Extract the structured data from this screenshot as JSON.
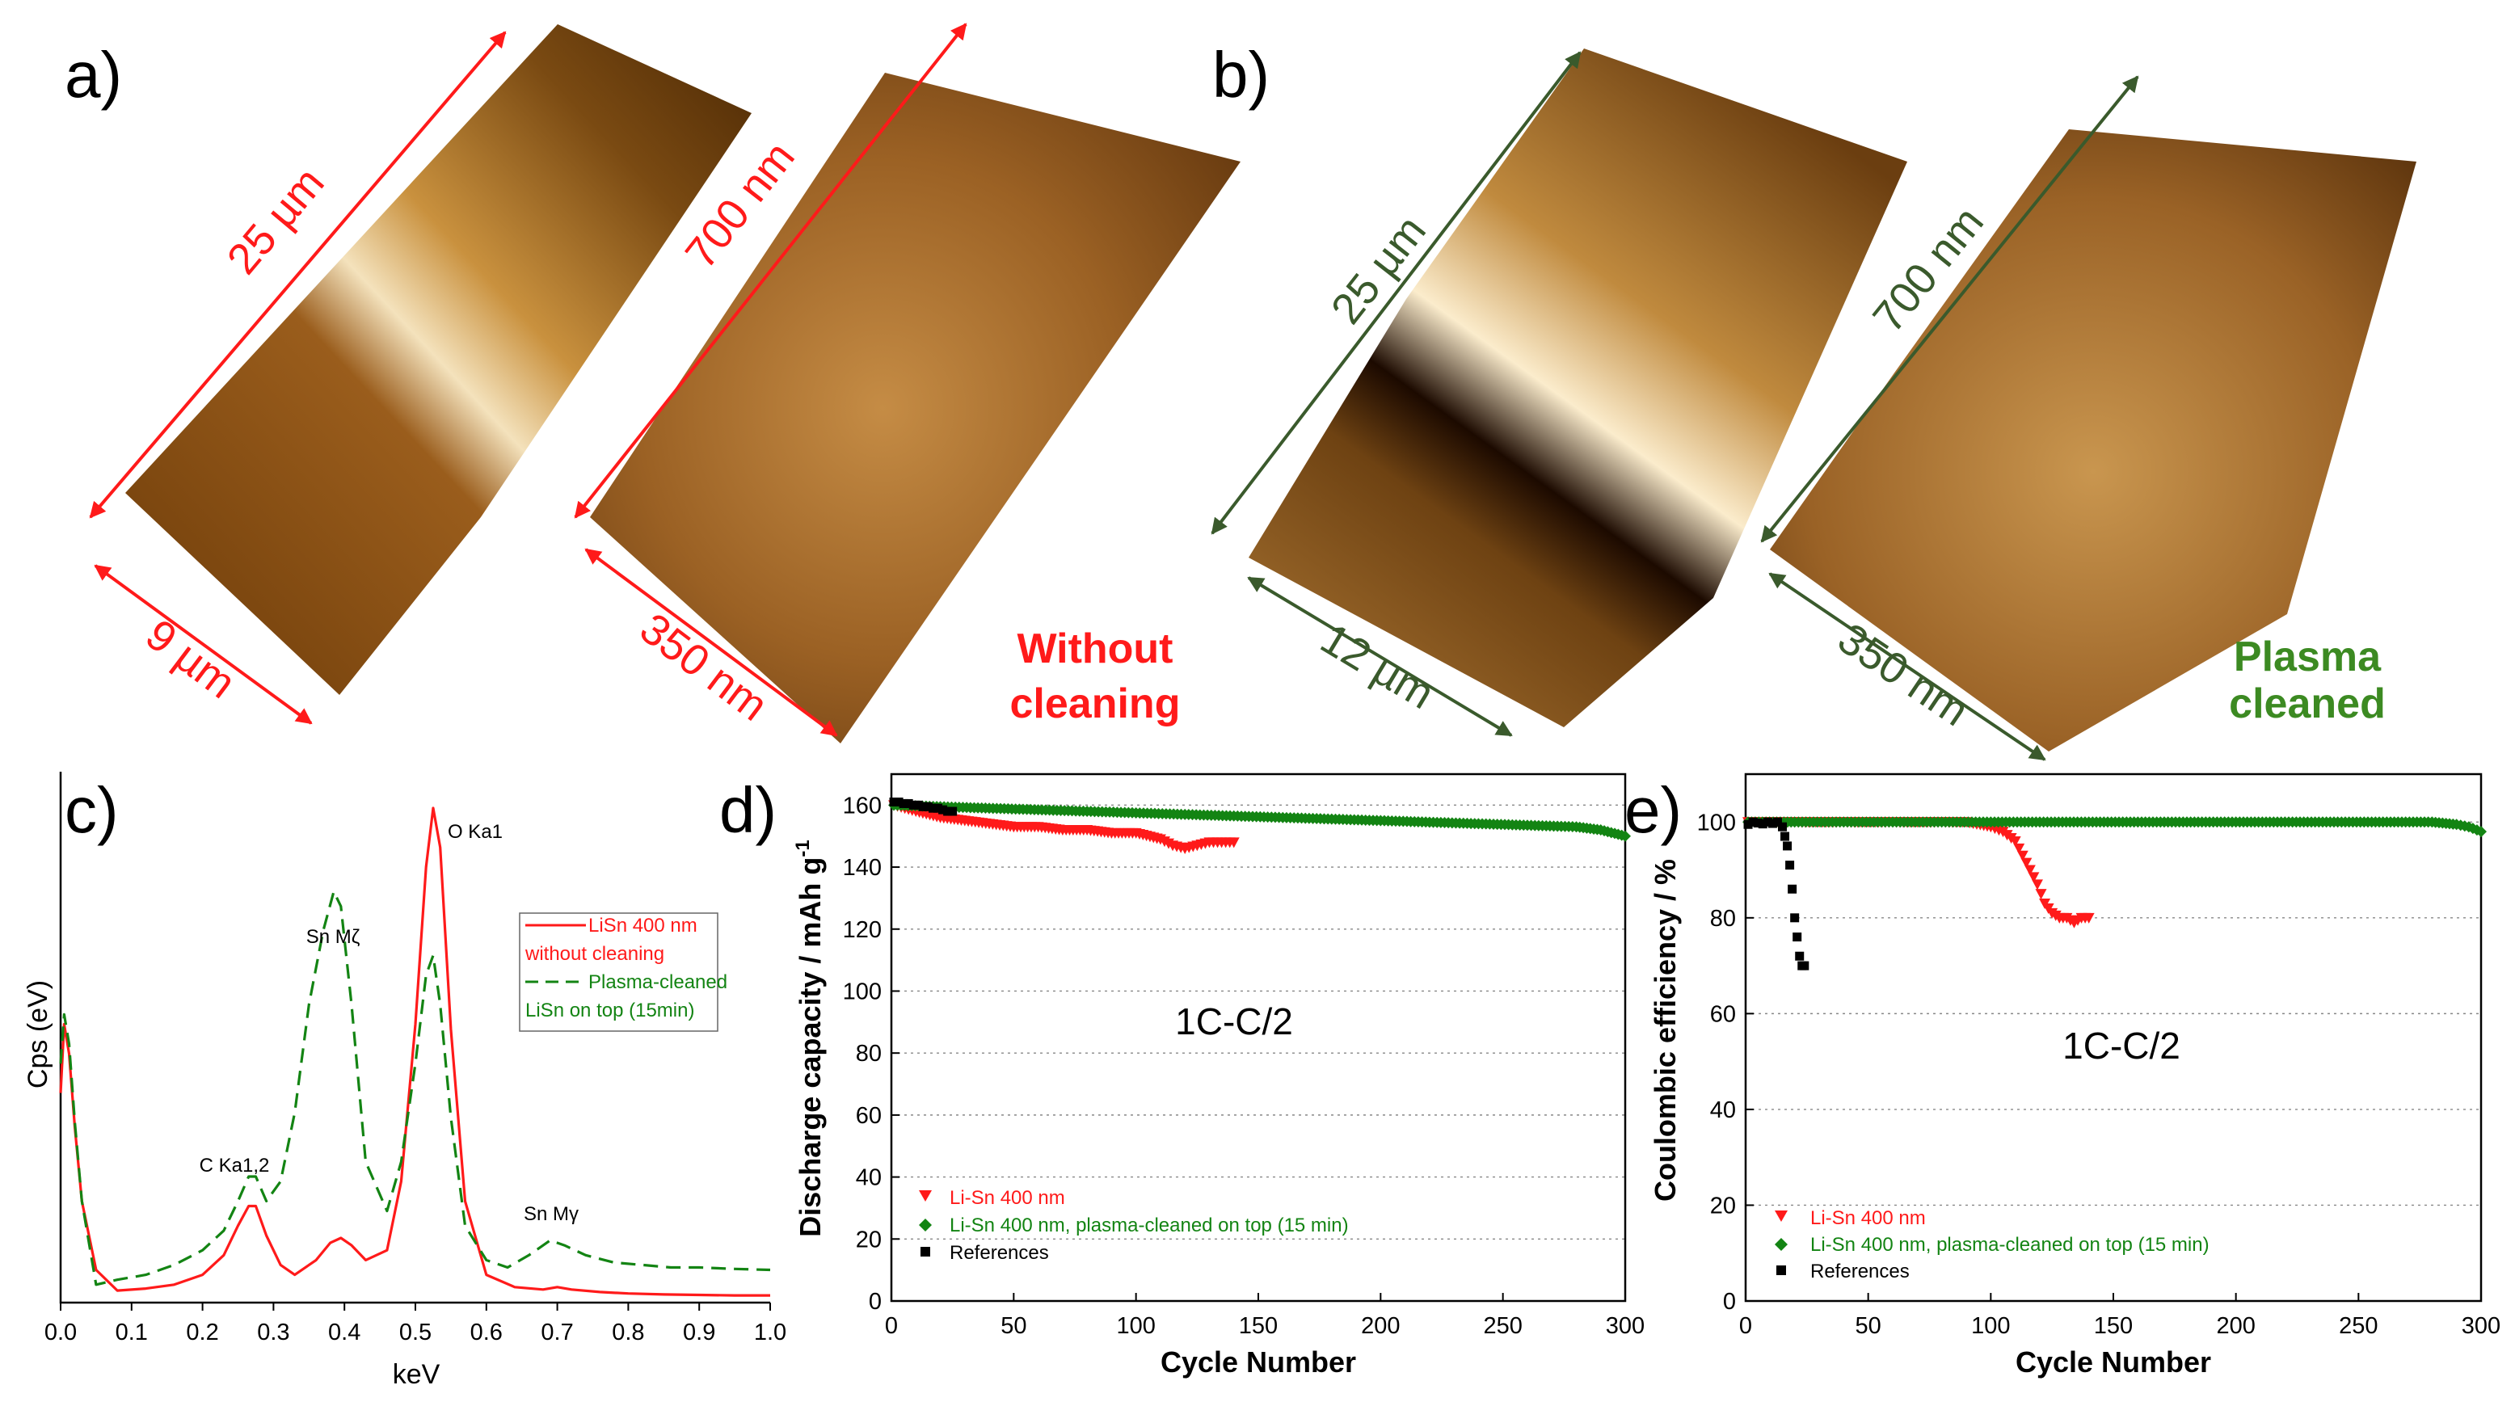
{
  "panel_letters": [
    "a)",
    "b)",
    "c)",
    "d)",
    "e)"
  ],
  "colors": {
    "red": "#ff1a1a",
    "green": "#138413",
    "dark_green": "#3a5a2c",
    "black": "#000000"
  },
  "afm": {
    "a": {
      "tile1": {
        "length_label": "25 µm",
        "width_label": "9 µm"
      },
      "tile2": {
        "length_label": "700 nm",
        "width_label": "350 nm"
      },
      "caption": [
        "Without",
        "cleaning"
      ]
    },
    "b": {
      "tile1": {
        "length_label": "25 µm",
        "width_label": "12 µm"
      },
      "tile2": {
        "length_label": "700 nm",
        "width_label": "350 nm"
      },
      "caption": [
        "Plasma",
        "cleaned"
      ]
    }
  },
  "chart_data": [
    {
      "id": "c",
      "type": "line",
      "title": "",
      "xlabel": "keV",
      "ylabel": "Cps (eV)",
      "xlim": [
        0.0,
        1.0
      ],
      "xticks": [
        "0.0",
        "0.1",
        "0.2",
        "0.3",
        "0.4",
        "0.5",
        "0.6",
        "0.7",
        "0.8",
        "0.9",
        "1.0"
      ],
      "grid": false,
      "annotations": [
        "C Ka1,2",
        "Sn Mζ",
        "O Ka1",
        "Sn Mγ"
      ],
      "legend": {
        "position": "top-right",
        "entries": [
          {
            "lines": [
              "LiSn 400 nm",
              "without cleaning"
            ]
          },
          {
            "lines": [
              "Plasma-cleaned",
              "LiSn on top (15min)"
            ]
          }
        ]
      },
      "series": [
        {
          "name": "LiSn 400 nm without cleaning",
          "color": "#ff1a1a",
          "dash": "solid",
          "x": [
            0.0,
            0.005,
            0.012,
            0.02,
            0.03,
            0.05,
            0.08,
            0.12,
            0.16,
            0.2,
            0.23,
            0.25,
            0.265,
            0.275,
            0.29,
            0.31,
            0.33,
            0.36,
            0.38,
            0.395,
            0.41,
            0.43,
            0.46,
            0.48,
            0.5,
            0.515,
            0.525,
            0.535,
            0.55,
            0.57,
            0.6,
            0.64,
            0.68,
            0.7,
            0.72,
            0.76,
            0.8,
            0.85,
            0.9,
            0.95,
            1.0
          ],
          "y": [
            0.42,
            0.56,
            0.5,
            0.35,
            0.2,
            0.06,
            0.018,
            0.022,
            0.03,
            0.05,
            0.09,
            0.15,
            0.19,
            0.19,
            0.13,
            0.07,
            0.05,
            0.08,
            0.115,
            0.125,
            0.11,
            0.08,
            0.1,
            0.24,
            0.56,
            0.88,
            1.0,
            0.92,
            0.55,
            0.2,
            0.05,
            0.025,
            0.02,
            0.025,
            0.02,
            0.015,
            0.012,
            0.01,
            0.009,
            0.008,
            0.008
          ]
        },
        {
          "name": "Plasma-cleaned LiSn on top (15min)",
          "color": "#138413",
          "dash": "dashed",
          "x": [
            0.0,
            0.005,
            0.012,
            0.02,
            0.03,
            0.05,
            0.08,
            0.12,
            0.16,
            0.2,
            0.23,
            0.25,
            0.265,
            0.275,
            0.29,
            0.31,
            0.33,
            0.35,
            0.37,
            0.385,
            0.395,
            0.41,
            0.43,
            0.46,
            0.48,
            0.5,
            0.515,
            0.525,
            0.535,
            0.55,
            0.57,
            0.6,
            0.63,
            0.66,
            0.69,
            0.71,
            0.74,
            0.78,
            0.82,
            0.86,
            0.9,
            0.95,
            1.0
          ],
          "y": [
            0.48,
            0.58,
            0.52,
            0.36,
            0.2,
            0.03,
            0.04,
            0.05,
            0.07,
            0.1,
            0.14,
            0.2,
            0.25,
            0.25,
            0.2,
            0.24,
            0.38,
            0.6,
            0.75,
            0.83,
            0.8,
            0.6,
            0.28,
            0.18,
            0.28,
            0.48,
            0.66,
            0.7,
            0.6,
            0.37,
            0.15,
            0.08,
            0.065,
            0.09,
            0.12,
            0.11,
            0.09,
            0.075,
            0.07,
            0.065,
            0.065,
            0.062,
            0.06
          ]
        }
      ]
    },
    {
      "id": "d",
      "type": "scatter",
      "title": "",
      "xlabel": "Cycle Number",
      "ylabel": "Discharge capacity / mAh g",
      "ylabel_sup": "-1",
      "xlim": [
        0,
        300
      ],
      "ylim": [
        0,
        170
      ],
      "xticks": [
        0,
        50,
        100,
        150,
        200,
        250,
        300
      ],
      "yticks": [
        0,
        20,
        40,
        60,
        80,
        100,
        120,
        140,
        160
      ],
      "grid": true,
      "annotation": "1C-C/2",
      "legend": {
        "position": "bottom-left",
        "entries": [
          "Li-Sn 400 nm",
          "Li-Sn 400 nm, plasma-cleaned on top (15 min)",
          "References"
        ]
      },
      "series": [
        {
          "name": "Li-Sn 400 nm",
          "color": "#ff1a1a",
          "marker": "triangle-down",
          "x": [
            1,
            10,
            20,
            30,
            40,
            50,
            60,
            70,
            80,
            90,
            100,
            110,
            115,
            120,
            125,
            130,
            135,
            140
          ],
          "y": [
            160,
            158,
            156,
            155,
            154,
            153,
            153,
            152,
            152,
            151,
            151,
            149,
            147,
            146,
            147,
            148,
            148,
            148
          ]
        },
        {
          "name": "Li-Sn 400 nm, plasma-cleaned on top (15 min)",
          "color": "#138413",
          "marker": "diamond",
          "x": [
            1,
            20,
            40,
            60,
            80,
            100,
            120,
            140,
            160,
            180,
            200,
            220,
            240,
            260,
            280,
            290,
            300
          ],
          "y": [
            160,
            159.5,
            159,
            158.5,
            158,
            157.5,
            157,
            156.5,
            156,
            155.5,
            155,
            154.5,
            154,
            153.5,
            153,
            152,
            150
          ]
        },
        {
          "name": "References",
          "color": "#000000",
          "marker": "square",
          "x": [
            1,
            3,
            5,
            7,
            9,
            11,
            13,
            15,
            17,
            19,
            21,
            23,
            25
          ],
          "y": [
            161,
            161,
            160.5,
            160.5,
            160,
            160,
            159.5,
            159.5,
            159,
            159,
            158.5,
            158,
            158
          ]
        }
      ]
    },
    {
      "id": "e",
      "type": "scatter",
      "title": "",
      "xlabel": "Cycle Number",
      "ylabel": "Coulombic efficiency / %",
      "xlim": [
        0,
        300
      ],
      "ylim": [
        0,
        110
      ],
      "xticks": [
        0,
        50,
        100,
        150,
        200,
        250,
        300
      ],
      "yticks": [
        0,
        20,
        40,
        60,
        80,
        100
      ],
      "grid": true,
      "annotation": "1C-C/2",
      "legend": {
        "position": "bottom-left",
        "entries": [
          "Li-Sn 400 nm",
          "Li-Sn 400 nm, plasma-cleaned on top (15 min)",
          "References"
        ]
      },
      "series": [
        {
          "name": "Li-Sn 400 nm",
          "color": "#ff1a1a",
          "marker": "triangle-down",
          "x": [
            1,
            10,
            20,
            30,
            40,
            50,
            60,
            70,
            80,
            90,
            100,
            105,
            110,
            113,
            116,
            119,
            122,
            125,
            128,
            131,
            134,
            137,
            140
          ],
          "y": [
            100,
            100,
            100,
            100,
            100,
            100,
            100,
            100,
            100,
            100,
            99,
            98,
            96,
            93,
            90,
            87,
            83,
            81,
            80,
            80,
            79,
            80,
            80
          ]
        },
        {
          "name": "Li-Sn 400 nm, plasma-cleaned on top (15 min)",
          "color": "#138413",
          "marker": "diamond",
          "x": [
            1,
            20,
            40,
            60,
            80,
            100,
            120,
            140,
            160,
            180,
            200,
            220,
            240,
            260,
            280,
            290,
            295,
            300
          ],
          "y": [
            100,
            100,
            100,
            100,
            100,
            100,
            100,
            100,
            100,
            100,
            100,
            100,
            100,
            100,
            100,
            99.5,
            99,
            98
          ]
        },
        {
          "name": "References",
          "color": "#000000",
          "marker": "square",
          "x": [
            1,
            3,
            5,
            7,
            9,
            11,
            13,
            15,
            16,
            17,
            18,
            19,
            20,
            21,
            22,
            23,
            24
          ],
          "y": [
            99.5,
            100,
            99.8,
            99.6,
            100,
            99.7,
            100,
            99,
            97,
            95,
            91,
            86,
            80,
            76,
            72,
            70,
            70
          ]
        }
      ]
    }
  ]
}
